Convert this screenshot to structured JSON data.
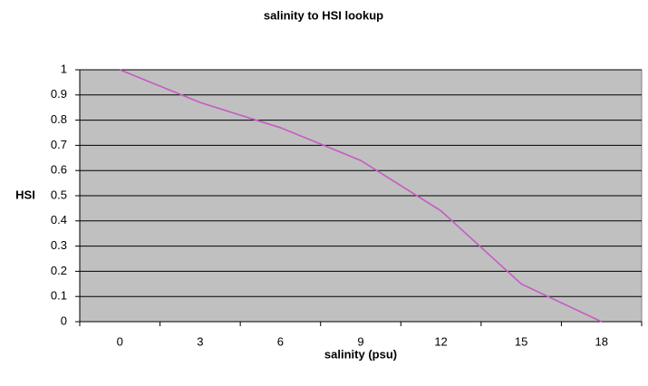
{
  "chart_data": {
    "type": "line",
    "title": "salinity to HSI lookup",
    "x_label": "salinity (psu)",
    "y_label": "HSI",
    "categories": [
      "0",
      "3",
      "6",
      "9",
      "12",
      "15",
      "18"
    ],
    "series": [
      {
        "name": "HSI",
        "color": "#c45cc4",
        "values": [
          1,
          0.87,
          0.77,
          0.64,
          0.44,
          0.15,
          0
        ]
      }
    ],
    "ylim": [
      0,
      1
    ],
    "yticks": [
      0,
      0.1,
      0.2,
      0.3,
      0.4,
      0.5,
      0.6,
      0.7,
      0.8,
      0.9,
      1
    ],
    "grid": true
  }
}
